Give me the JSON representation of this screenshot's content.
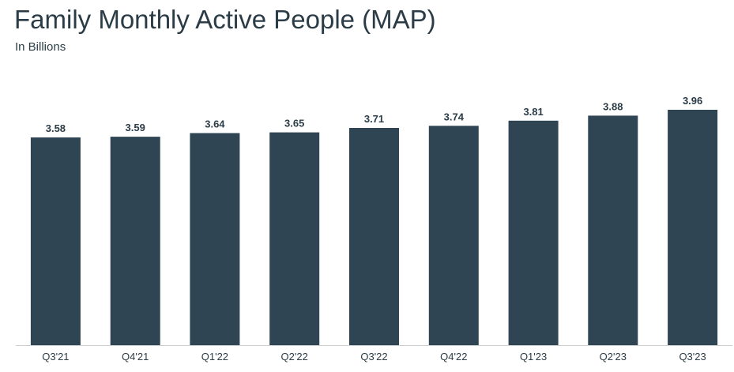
{
  "chart_data": {
    "type": "bar",
    "title": "Family Monthly Active People (MAP)",
    "subtitle": "In Billions",
    "categories": [
      "Q3'21",
      "Q4'21",
      "Q1'22",
      "Q2'22",
      "Q3'22",
      "Q4'22",
      "Q1'23",
      "Q2'23",
      "Q3'23"
    ],
    "values": [
      3.58,
      3.59,
      3.64,
      3.65,
      3.71,
      3.74,
      3.81,
      3.88,
      3.96
    ],
    "value_labels": [
      "3.58",
      "3.59",
      "3.64",
      "3.65",
      "3.71",
      "3.74",
      "3.81",
      "3.88",
      "3.96"
    ],
    "xlabel": "",
    "ylabel": "",
    "ylim": [
      0,
      4.5
    ],
    "grid": false,
    "bar_color": "#2f4553",
    "axis_color": "#cfcfcf"
  }
}
